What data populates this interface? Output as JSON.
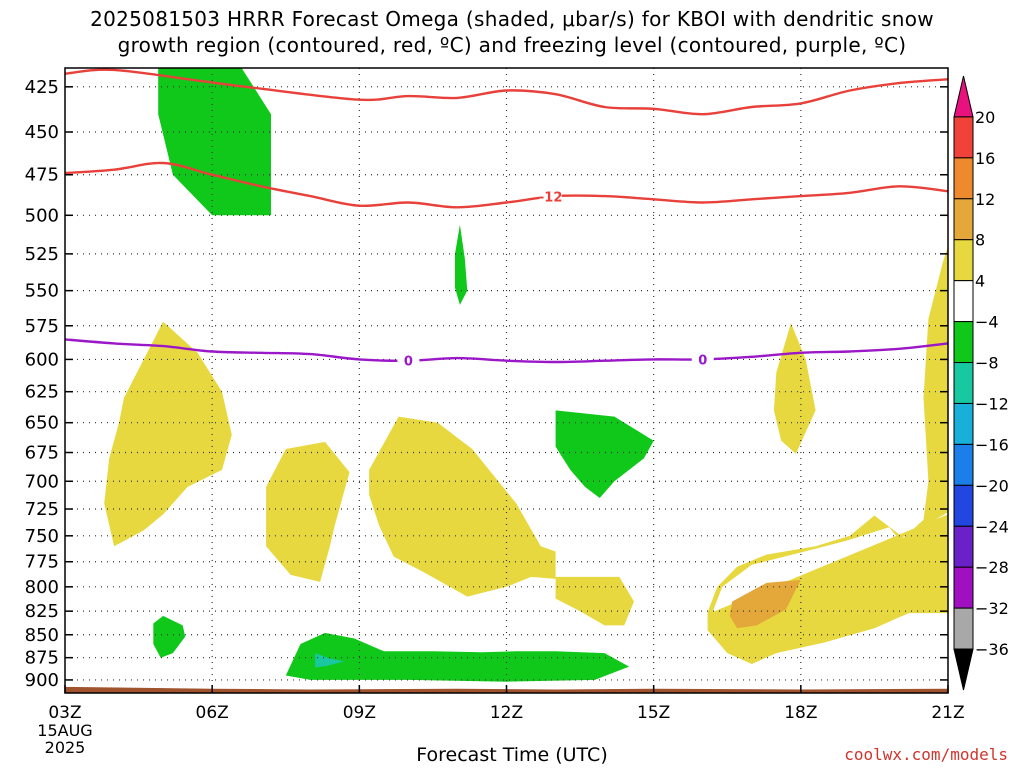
{
  "title_line1": "2025081503 HRRR Forecast Omega (shaded, μbar/s) for KBOI with dendritic snow",
  "title_line2": "growth region (contoured, red, ºC) and freezing level (contoured, purple, ºC)",
  "credit": "coolwx.com/models",
  "chart_data": {
    "type": "contour",
    "xlabel": "Forecast Time (UTC)",
    "x_ticks": [
      {
        "hour": 0,
        "label": "03Z",
        "sub": [
          "15AUG",
          "2025"
        ]
      },
      {
        "hour": 3,
        "label": "06Z"
      },
      {
        "hour": 6,
        "label": "09Z"
      },
      {
        "hour": 9,
        "label": "12Z"
      },
      {
        "hour": 12,
        "label": "15Z"
      },
      {
        "hour": 15,
        "label": "18Z"
      },
      {
        "hour": 18,
        "label": "21Z"
      }
    ],
    "xlim": [
      0,
      18
    ],
    "y_axis": "pressure (hPa), log scale, inverted",
    "ylim": [
      415,
      915
    ],
    "y_ticks": [
      425,
      450,
      475,
      500,
      525,
      550,
      575,
      600,
      625,
      650,
      675,
      700,
      725,
      750,
      775,
      800,
      825,
      850,
      875,
      900
    ],
    "grid": true,
    "colorbar": {
      "labels": [
        "20",
        "16",
        "12",
        "8",
        "4",
        "−4",
        "−8",
        "−12",
        "−16",
        "−20",
        "−24",
        "−28",
        "−32",
        "−36"
      ],
      "colors": [
        "#e8117d",
        "#f0423a",
        "#ee8a2d",
        "#e4a83a",
        "#e8d840",
        "#ffffff",
        "#10c81a",
        "#18c8a0",
        "#18b0d8",
        "#1c7ee8",
        "#2246e0",
        "#6a22c8",
        "#a010c0",
        "#a8a8a8",
        "#000000"
      ]
    },
    "contours": [
      {
        "name": "-12 upper",
        "color": "#e8403a",
        "label": "",
        "points": [
          [
            0,
            418
          ],
          [
            1,
            416
          ],
          [
            2.8,
            422
          ],
          [
            4,
            426
          ],
          [
            6,
            432
          ],
          [
            7,
            430
          ],
          [
            8,
            431
          ],
          [
            9,
            427
          ],
          [
            10,
            429
          ],
          [
            11,
            436
          ],
          [
            12,
            437
          ],
          [
            13,
            440
          ],
          [
            14,
            436
          ],
          [
            15,
            434
          ],
          [
            16,
            427
          ],
          [
            17,
            423
          ],
          [
            18,
            421
          ]
        ]
      },
      {
        "name": "-12 lower",
        "color": "#e8403a",
        "label": "-12",
        "label_at": 9.9,
        "points": [
          [
            0,
            474
          ],
          [
            1,
            472
          ],
          [
            2,
            468
          ],
          [
            3,
            475
          ],
          [
            4,
            482
          ],
          [
            5,
            488
          ],
          [
            6,
            494
          ],
          [
            7,
            492
          ],
          [
            8,
            495
          ],
          [
            9,
            492
          ],
          [
            10,
            488
          ],
          [
            11,
            488
          ],
          [
            12,
            490
          ],
          [
            13,
            492
          ],
          [
            14,
            490
          ],
          [
            15,
            488
          ],
          [
            16,
            486
          ],
          [
            17,
            482
          ],
          [
            18,
            485
          ]
        ]
      },
      {
        "name": "freezing level",
        "color": "#9b18c8",
        "label": "0",
        "label_positions": [
          7,
          13
        ],
        "points": [
          [
            0,
            585
          ],
          [
            1,
            588
          ],
          [
            2,
            590
          ],
          [
            3,
            594
          ],
          [
            4,
            595
          ],
          [
            5,
            596
          ],
          [
            6,
            600
          ],
          [
            7,
            601
          ],
          [
            8,
            599
          ],
          [
            9,
            601
          ],
          [
            10,
            602
          ],
          [
            11,
            601
          ],
          [
            12,
            600
          ],
          [
            13,
            600
          ],
          [
            14,
            598
          ],
          [
            15,
            595
          ],
          [
            16,
            594
          ],
          [
            17,
            592
          ],
          [
            18,
            588
          ]
        ]
      }
    ],
    "shaded": [
      {
        "level": "-4 to -8",
        "color": "#10c81a",
        "points": [
          [
            1.9,
            415
          ],
          [
            3.6,
            415
          ],
          [
            4.2,
            440
          ],
          [
            4.2,
            500
          ],
          [
            3.0,
            500
          ],
          [
            2.2,
            475
          ],
          [
            1.9,
            440
          ]
        ]
      },
      {
        "level": "-4 to -8",
        "color": "#10c81a",
        "points": [
          [
            8.05,
            506
          ],
          [
            8.15,
            528
          ],
          [
            8.2,
            550
          ],
          [
            8.05,
            560
          ],
          [
            7.95,
            548
          ],
          [
            7.95,
            525
          ]
        ]
      },
      {
        "level": "-4 to -8",
        "color": "#10c81a",
        "points": [
          [
            10.0,
            640
          ],
          [
            11.2,
            645
          ],
          [
            12.0,
            665
          ],
          [
            11.8,
            680
          ],
          [
            11.2,
            700
          ],
          [
            10.9,
            715
          ],
          [
            10.6,
            705
          ],
          [
            10.3,
            690
          ],
          [
            10.0,
            670
          ]
        ]
      },
      {
        "level": "-4 to -8",
        "color": "#10c81a",
        "points": [
          [
            1.8,
            838
          ],
          [
            2.0,
            830
          ],
          [
            2.4,
            840
          ],
          [
            2.45,
            852
          ],
          [
            2.2,
            870
          ],
          [
            1.95,
            875
          ],
          [
            1.8,
            860
          ]
        ]
      },
      {
        "level": "-4 to -8",
        "color": "#10c81a",
        "points": [
          [
            4.5,
            895
          ],
          [
            4.8,
            860
          ],
          [
            5.3,
            848
          ],
          [
            5.9,
            854
          ],
          [
            6.5,
            868
          ],
          [
            7.5,
            868
          ],
          [
            8.5,
            869
          ],
          [
            9.2,
            868
          ],
          [
            10.0,
            868
          ],
          [
            11.0,
            870
          ],
          [
            11.5,
            885
          ],
          [
            10.8,
            900
          ],
          [
            9.0,
            902
          ],
          [
            7.0,
            900
          ],
          [
            5.0,
            900
          ]
        ]
      },
      {
        "level": "-8 to -12",
        "color": "#18c8a0",
        "points": [
          [
            5.1,
            870
          ],
          [
            5.4,
            876
          ],
          [
            5.7,
            879
          ],
          [
            5.35,
            884
          ],
          [
            5.1,
            886
          ]
        ]
      },
      {
        "level": "4 to 8",
        "color": "#e8d840",
        "points": [
          [
            1.2,
            630
          ],
          [
            2.0,
            572
          ],
          [
            2.7,
            595
          ],
          [
            3.2,
            625
          ],
          [
            3.4,
            660
          ],
          [
            3.2,
            690
          ],
          [
            2.5,
            705
          ],
          [
            2.0,
            730
          ],
          [
            1.6,
            745
          ],
          [
            1.0,
            760
          ],
          [
            0.8,
            720
          ],
          [
            0.9,
            680
          ],
          [
            1.1,
            650
          ]
        ]
      },
      {
        "level": "4 to 8",
        "color": "#e8d840",
        "points": [
          [
            4.1,
            705
          ],
          [
            4.5,
            672
          ],
          [
            5.3,
            666
          ],
          [
            5.8,
            692
          ],
          [
            5.5,
            740
          ],
          [
            5.4,
            760
          ],
          [
            5.2,
            795
          ],
          [
            4.6,
            788
          ],
          [
            4.1,
            760
          ]
        ]
      },
      {
        "level": "4 to 8",
        "color": "#e8d840",
        "points": [
          [
            6.2,
            690
          ],
          [
            6.8,
            645
          ],
          [
            7.6,
            650
          ],
          [
            8.3,
            672
          ],
          [
            9.2,
            720
          ],
          [
            9.7,
            760
          ],
          [
            10.0,
            765
          ],
          [
            10.0,
            792
          ],
          [
            9.5,
            790
          ],
          [
            9.0,
            800
          ],
          [
            8.2,
            810
          ],
          [
            7.3,
            785
          ],
          [
            6.7,
            770
          ],
          [
            6.4,
            740
          ],
          [
            6.2,
            712
          ]
        ]
      },
      {
        "level": "4 to 8",
        "color": "#e8d840",
        "points": [
          [
            10.0,
            790
          ],
          [
            11.3,
            790
          ],
          [
            11.6,
            815
          ],
          [
            11.4,
            840
          ],
          [
            11.0,
            840
          ],
          [
            10.5,
            825
          ],
          [
            10.0,
            812
          ]
        ]
      },
      {
        "level": "4 to 8",
        "color": "#e8d840",
        "points": [
          [
            14.5,
            610
          ],
          [
            14.8,
            573
          ],
          [
            15.1,
            600
          ],
          [
            15.3,
            640
          ],
          [
            14.9,
            676
          ],
          [
            14.6,
            665
          ],
          [
            14.45,
            640
          ]
        ]
      },
      {
        "level": "4 to 8",
        "color": "#e8d840",
        "points": [
          [
            13.2,
            826
          ],
          [
            13.4,
            800
          ],
          [
            14.0,
            778
          ],
          [
            15.0,
            766
          ],
          [
            15.9,
            755
          ],
          [
            16.8,
            742
          ],
          [
            17.0,
            753
          ],
          [
            17.4,
            744
          ],
          [
            18.0,
            728
          ],
          [
            18.0,
            520
          ],
          [
            17.9,
            530
          ],
          [
            17.6,
            570
          ],
          [
            17.5,
            630
          ],
          [
            17.6,
            700
          ],
          [
            17.5,
            735
          ],
          [
            17.1,
            752
          ],
          [
            16.5,
            731
          ],
          [
            16.0,
            750
          ],
          [
            15.3,
            760
          ],
          [
            14.3,
            768
          ],
          [
            13.7,
            780
          ],
          [
            13.3,
            800
          ],
          [
            13.1,
            826
          ],
          [
            13.1,
            845
          ],
          [
            13.5,
            870
          ],
          [
            14.0,
            882
          ],
          [
            14.5,
            870
          ],
          [
            15.5,
            858
          ],
          [
            16.5,
            843
          ],
          [
            17.2,
            827
          ],
          [
            18.0,
            827
          ],
          [
            18.0,
            730
          ]
        ]
      },
      {
        "level": "8 to 12",
        "color": "#e4a83a",
        "points": [
          [
            13.6,
            815
          ],
          [
            14.3,
            796
          ],
          [
            15.0,
            793
          ],
          [
            14.7,
            823
          ],
          [
            14.1,
            840
          ],
          [
            13.7,
            843
          ],
          [
            13.55,
            830
          ]
        ]
      }
    ],
    "terrain": {
      "color": "#a0522d",
      "top_hpa": 907,
      "points": [
        [
          0,
          908
        ],
        [
          3,
          910
        ],
        [
          5,
          911
        ],
        [
          8,
          910
        ],
        [
          10,
          911
        ],
        [
          12,
          910
        ],
        [
          15,
          911
        ],
        [
          18,
          910
        ]
      ]
    }
  }
}
